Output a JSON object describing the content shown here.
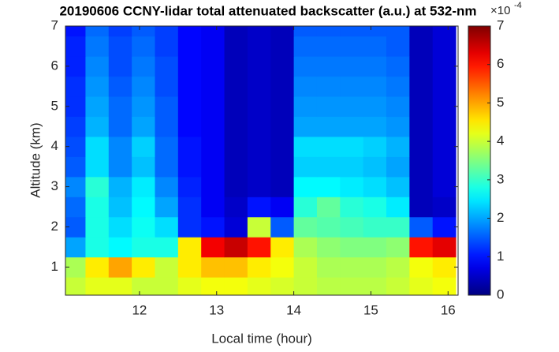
{
  "chart_data": {
    "type": "heatmap",
    "title": "20190606 CCNY-lidar total attenuated backscatter (a.u.) at 532-nm",
    "x_label": "Local time (hour)",
    "y_label": "Altitude (km)",
    "xlim": [
      11.04,
      16.13
    ],
    "ylim": [
      0.3,
      7
    ],
    "xticks": [
      12,
      13,
      14,
      15,
      16
    ],
    "yticks": [
      1,
      2,
      3,
      4,
      5,
      6,
      7
    ],
    "x": [
      11.15,
      11.45,
      11.75,
      12.05,
      12.35,
      12.65,
      12.95,
      13.25,
      13.55,
      13.85,
      14.15,
      14.45,
      14.75,
      15.05,
      15.35,
      15.65,
      15.95
    ],
    "y": [
      0.5,
      1,
      1.5,
      2,
      2.5,
      3,
      3.5,
      4,
      4.5,
      5,
      5.5,
      6,
      6.5,
      7
    ],
    "z": [
      [
        4,
        4.2,
        4.2,
        4,
        4,
        4.2,
        4.3,
        4.3,
        4.2,
        4.1,
        4,
        3.9,
        3.9,
        3.9,
        4,
        4.2,
        4.3
      ],
      [
        3.8,
        4.5,
        5,
        4.5,
        4,
        4.5,
        4.8,
        4.8,
        4.5,
        4.3,
        4,
        3.8,
        3.8,
        3.8,
        3.9,
        4.3,
        4.5
      ],
      [
        2,
        2.8,
        2.6,
        2.8,
        2.8,
        4.5,
        6.2,
        6.5,
        6,
        4.5,
        3.8,
        3.6,
        3.5,
        3.5,
        3.6,
        6,
        6.3
      ],
      [
        1.5,
        2.8,
        2.4,
        2.7,
        2.4,
        1.2,
        1,
        0.6,
        4,
        1.5,
        3.3,
        3.2,
        3.1,
        3,
        3,
        1.5,
        1
      ],
      [
        1.6,
        2.8,
        2.2,
        2.6,
        2,
        1.2,
        0.8,
        0.5,
        1,
        0.8,
        2.9,
        3.3,
        2.9,
        2.8,
        2.5,
        0.4,
        0.5
      ],
      [
        1.8,
        2.9,
        2.1,
        2.5,
        1.8,
        1.1,
        0.8,
        0.4,
        0.5,
        0.4,
        2.6,
        2.6,
        2.5,
        2.4,
        2.2,
        0.4,
        0.6
      ],
      [
        1.5,
        2.4,
        1.8,
        2.2,
        1.6,
        1,
        0.8,
        0.4,
        0.5,
        0.4,
        2.3,
        2.3,
        2.3,
        2.2,
        2,
        0.4,
        0.6
      ],
      [
        1.4,
        2.4,
        1.8,
        2.3,
        1.6,
        1,
        0.8,
        0.4,
        0.5,
        0.4,
        2.4,
        2.4,
        2.4,
        2.3,
        2.1,
        0.4,
        0.6
      ],
      [
        1.3,
        2.1,
        1.6,
        2,
        1.5,
        0.9,
        0.8,
        0.4,
        0.5,
        0.4,
        2,
        2,
        2,
        2,
        1.9,
        0.4,
        0.6
      ],
      [
        1.2,
        2,
        1.6,
        1.9,
        1.5,
        0.9,
        0.8,
        0.4,
        0.5,
        0.4,
        1.9,
        1.9,
        1.9,
        1.9,
        1.8,
        0.4,
        0.6
      ],
      [
        1.2,
        1.9,
        1.5,
        1.8,
        1.4,
        0.9,
        0.8,
        0.4,
        0.5,
        0.4,
        1.8,
        1.8,
        1.8,
        1.8,
        1.7,
        0.4,
        0.6
      ],
      [
        1.1,
        1.8,
        1.4,
        1.7,
        1.4,
        0.9,
        0.8,
        0.4,
        0.5,
        0.4,
        1.7,
        1.7,
        1.7,
        1.7,
        1.6,
        0.4,
        0.6
      ],
      [
        1.1,
        1.7,
        1.4,
        1.6,
        1.3,
        0.9,
        0.8,
        0.4,
        0.5,
        0.4,
        1.6,
        1.6,
        1.6,
        1.6,
        1.5,
        0.4,
        0.6
      ],
      [
        1,
        1.6,
        1.3,
        1.5,
        1.3,
        0.9,
        0.8,
        0.4,
        0.5,
        0.4,
        1.5,
        1.5,
        1.5,
        1.5,
        1.5,
        0.4,
        0.6
      ]
    ],
    "colormap": "jet",
    "colorbar": {
      "lim": [
        0,
        7
      ],
      "ticks": [
        0,
        1,
        2,
        3,
        4,
        5,
        6,
        7
      ],
      "exponent_base": "×10",
      "exponent": "-4"
    }
  }
}
